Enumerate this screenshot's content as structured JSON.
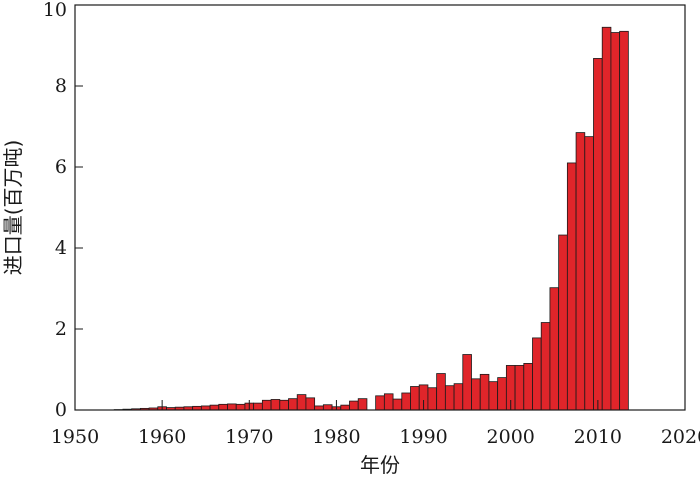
{
  "chart_data": {
    "type": "bar",
    "title": "",
    "xlabel": "年份",
    "ylabel": "进口量(百万吨)",
    "xlim": [
      1950,
      2020
    ],
    "ylim": [
      0,
      10
    ],
    "xticks": [
      1950,
      1960,
      1970,
      1980,
      1990,
      2000,
      2010,
      2020
    ],
    "yticks": [
      0,
      2,
      4,
      6,
      8,
      10
    ],
    "grid": false,
    "bar_color": "#e0252a",
    "edge_color": "#1a1a1a",
    "x": [
      1955,
      1956,
      1957,
      1958,
      1959,
      1960,
      1961,
      1962,
      1963,
      1964,
      1965,
      1966,
      1967,
      1968,
      1969,
      1970,
      1971,
      1972,
      1973,
      1974,
      1975,
      1976,
      1977,
      1978,
      1979,
      1980,
      1981,
      1982,
      1983,
      1984,
      1985,
      1986,
      1987,
      1988,
      1989,
      1990,
      1991,
      1992,
      1993,
      1994,
      1995,
      1996,
      1997,
      1998,
      1999,
      2000,
      2001,
      2002,
      2003,
      2004,
      2005,
      2006,
      2007,
      2008,
      2009,
      2010,
      2011,
      2012,
      2013
    ],
    "values": [
      0.01,
      0.02,
      0.03,
      0.04,
      0.05,
      0.08,
      0.06,
      0.07,
      0.08,
      0.09,
      0.1,
      0.12,
      0.14,
      0.15,
      0.14,
      0.17,
      0.17,
      0.24,
      0.26,
      0.24,
      0.28,
      0.38,
      0.3,
      0.1,
      0.13,
      0.08,
      0.12,
      0.22,
      0.28,
      0.0,
      0.35,
      0.4,
      0.27,
      0.42,
      0.58,
      0.62,
      0.55,
      0.9,
      0.6,
      0.65,
      1.37,
      0.77,
      0.88,
      0.7,
      0.8,
      1.1,
      1.1,
      1.15,
      1.78,
      2.16,
      3.02,
      4.32,
      6.1,
      6.85,
      6.75,
      8.68,
      9.45,
      9.32,
      9.35
    ]
  }
}
